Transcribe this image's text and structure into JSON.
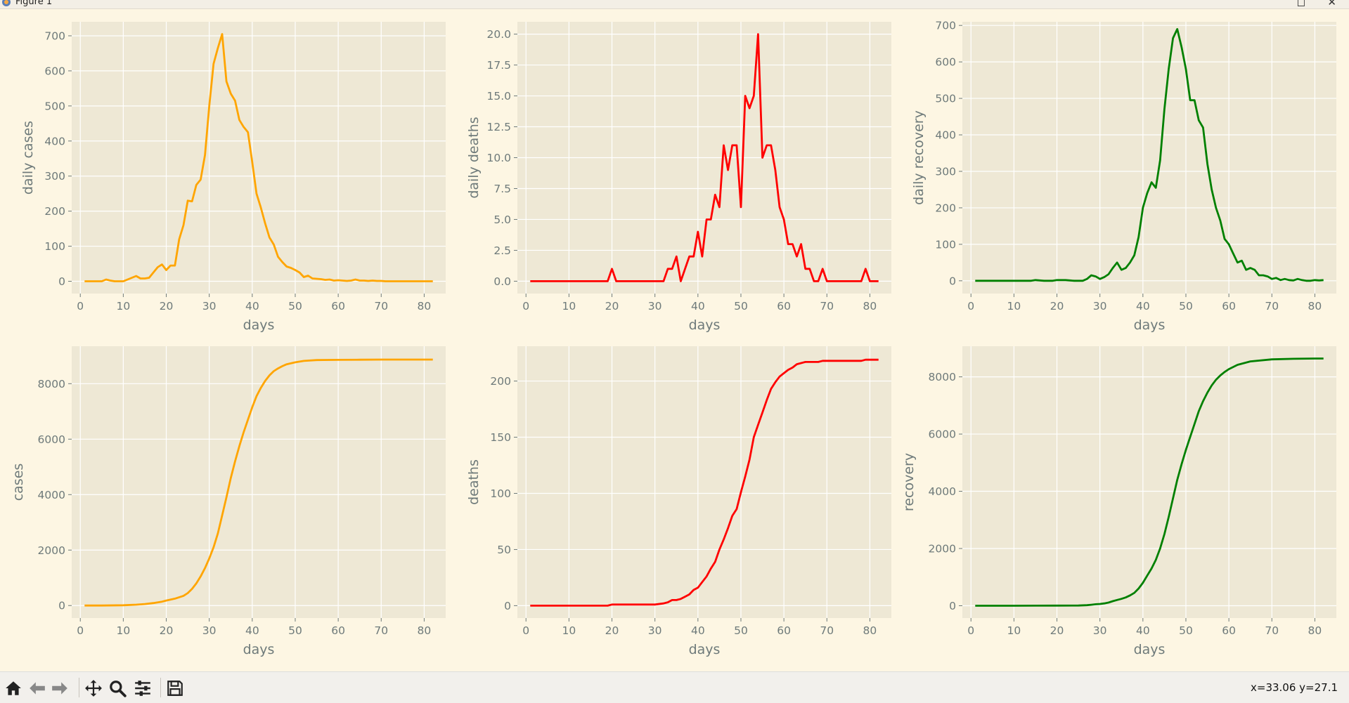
{
  "window": {
    "title": "Figure 1"
  },
  "toolbar": {
    "buttons": [
      {
        "name": "home",
        "icon": "home-icon"
      },
      {
        "name": "back",
        "icon": "arrow-left-icon"
      },
      {
        "name": "forward",
        "icon": "arrow-right-icon"
      },
      {
        "name": "pan",
        "icon": "move-icon"
      },
      {
        "name": "zoom",
        "icon": "magnifier-icon"
      },
      {
        "name": "configure",
        "icon": "sliders-icon"
      },
      {
        "name": "save",
        "icon": "floppy-disk-icon"
      }
    ],
    "coordinates": "x=33.06 y=27.1"
  },
  "colors": {
    "orange": "#ffa500",
    "red": "#ff0000",
    "green": "#008000",
    "axes_bg": "#eee8d5",
    "grid": "#ffffff"
  },
  "chart_data": [
    {
      "type": "line",
      "ylabel": "daily cases",
      "xlabel": "days",
      "color": "#ffa500",
      "xlim": [
        -2,
        85
      ],
      "ylim": [
        -35,
        740
      ],
      "xticks": [
        0,
        10,
        20,
        30,
        40,
        50,
        60,
        70,
        80
      ],
      "yticks": [
        0,
        100,
        200,
        300,
        400,
        500,
        600,
        700
      ],
      "x": [
        1,
        2,
        3,
        4,
        5,
        6,
        7,
        8,
        9,
        10,
        11,
        12,
        13,
        14,
        15,
        16,
        17,
        18,
        19,
        20,
        21,
        22,
        23,
        24,
        25,
        26,
        27,
        28,
        29,
        30,
        31,
        32,
        33,
        34,
        35,
        36,
        37,
        38,
        39,
        40,
        41,
        42,
        43,
        44,
        45,
        46,
        47,
        48,
        49,
        50,
        51,
        52,
        53,
        54,
        55,
        56,
        57,
        58,
        59,
        60,
        61,
        62,
        63,
        64,
        65,
        66,
        67,
        68,
        69,
        70,
        71,
        72,
        73,
        74,
        75,
        76,
        77,
        78,
        79,
        80,
        81,
        82
      ],
      "y": [
        0,
        0,
        0,
        0,
        0,
        5,
        2,
        0,
        0,
        0,
        5,
        10,
        15,
        8,
        8,
        10,
        25,
        40,
        48,
        32,
        45,
        45,
        120,
        160,
        230,
        228,
        275,
        290,
        360,
        500,
        620,
        665,
        705,
        570,
        535,
        515,
        460,
        440,
        425,
        340,
        250,
        210,
        165,
        125,
        105,
        70,
        55,
        42,
        38,
        32,
        25,
        12,
        16,
        8,
        7,
        6,
        4,
        5,
        2,
        3,
        2,
        1,
        2,
        5,
        2,
        2,
        1,
        2,
        1,
        1,
        0,
        0,
        0,
        0,
        0,
        0,
        0,
        0,
        0,
        0,
        0,
        0
      ]
    },
    {
      "type": "line",
      "ylabel": "daily deaths",
      "xlabel": "days",
      "color": "#ff0000",
      "xlim": [
        -2,
        85
      ],
      "ylim": [
        -1,
        21
      ],
      "xticks": [
        0,
        10,
        20,
        30,
        40,
        50,
        60,
        70,
        80
      ],
      "yticks": [
        0.0,
        2.5,
        5.0,
        7.5,
        10.0,
        12.5,
        15.0,
        17.5,
        20.0
      ],
      "ytick_labels": [
        "0.0",
        "2.5",
        "5.0",
        "7.5",
        "10.0",
        "12.5",
        "15.0",
        "17.5",
        "20.0"
      ],
      "x": [
        1,
        2,
        3,
        4,
        5,
        6,
        7,
        8,
        9,
        10,
        11,
        12,
        13,
        14,
        15,
        16,
        17,
        18,
        19,
        20,
        21,
        22,
        23,
        24,
        25,
        26,
        27,
        28,
        29,
        30,
        31,
        32,
        33,
        34,
        35,
        36,
        37,
        38,
        39,
        40,
        41,
        42,
        43,
        44,
        45,
        46,
        47,
        48,
        49,
        50,
        51,
        52,
        53,
        54,
        55,
        56,
        57,
        58,
        59,
        60,
        61,
        62,
        63,
        64,
        65,
        66,
        67,
        68,
        69,
        70,
        71,
        72,
        73,
        74,
        75,
        76,
        77,
        78,
        79,
        80,
        81,
        82
      ],
      "y": [
        0,
        0,
        0,
        0,
        0,
        0,
        0,
        0,
        0,
        0,
        0,
        0,
        0,
        0,
        0,
        0,
        0,
        0,
        0,
        1,
        0,
        0,
        0,
        0,
        0,
        0,
        0,
        0,
        0,
        0,
        0,
        0,
        1,
        1,
        2,
        0,
        1,
        2,
        2,
        4,
        2,
        5,
        5,
        7,
        6,
        11,
        9,
        11,
        11,
        6,
        15,
        14,
        15,
        20,
        10,
        11,
        11,
        9,
        6,
        5,
        3,
        3,
        2,
        3,
        1,
        1,
        0,
        0,
        1,
        0,
        0,
        0,
        0,
        0,
        0,
        0,
        0,
        0,
        1,
        0,
        0,
        0
      ]
    },
    {
      "type": "line",
      "ylabel": "daily recovery",
      "xlabel": "days",
      "color": "#008000",
      "xlim": [
        -2,
        85
      ],
      "ylim": [
        -35,
        710
      ],
      "xticks": [
        0,
        10,
        20,
        30,
        40,
        50,
        60,
        70,
        80
      ],
      "yticks": [
        0,
        100,
        200,
        300,
        400,
        500,
        600,
        700
      ],
      "x": [
        1,
        2,
        3,
        4,
        5,
        6,
        7,
        8,
        9,
        10,
        11,
        12,
        13,
        14,
        15,
        16,
        17,
        18,
        19,
        20,
        21,
        22,
        23,
        24,
        25,
        26,
        27,
        28,
        29,
        30,
        31,
        32,
        33,
        34,
        35,
        36,
        37,
        38,
        39,
        40,
        41,
        42,
        43,
        44,
        45,
        46,
        47,
        48,
        49,
        50,
        51,
        52,
        53,
        54,
        55,
        56,
        57,
        58,
        59,
        60,
        61,
        62,
        63,
        64,
        65,
        66,
        67,
        68,
        69,
        70,
        71,
        72,
        73,
        74,
        75,
        76,
        77,
        78,
        79,
        80,
        81,
        82
      ],
      "y": [
        0,
        0,
        0,
        0,
        0,
        0,
        0,
        0,
        0,
        0,
        0,
        0,
        0,
        0,
        2,
        1,
        0,
        0,
        0,
        2,
        2,
        2,
        1,
        0,
        0,
        0,
        5,
        15,
        12,
        5,
        10,
        18,
        35,
        50,
        30,
        35,
        50,
        70,
        120,
        200,
        240,
        270,
        255,
        330,
        470,
        580,
        665,
        690,
        640,
        580,
        495,
        495,
        440,
        420,
        320,
        250,
        200,
        165,
        115,
        100,
        75,
        50,
        55,
        30,
        35,
        30,
        15,
        15,
        12,
        5,
        8,
        2,
        5,
        2,
        1,
        5,
        2,
        0,
        0,
        2,
        1,
        2
      ]
    },
    {
      "type": "line",
      "ylabel": "cases",
      "xlabel": "days",
      "color": "#ffa500",
      "xlim": [
        -2,
        85
      ],
      "ylim": [
        -450,
        9350
      ],
      "xticks": [
        0,
        10,
        20,
        30,
        40,
        50,
        60,
        70,
        80
      ],
      "yticks": [
        0,
        2000,
        4000,
        6000,
        8000
      ],
      "x": [
        1,
        5,
        10,
        13,
        15,
        17,
        19,
        20,
        22,
        23,
        24,
        25,
        26,
        27,
        28,
        29,
        30,
        31,
        32,
        33,
        34,
        35,
        36,
        37,
        38,
        39,
        40,
        41,
        42,
        43,
        44,
        45,
        46,
        47,
        48,
        50,
        52,
        55,
        60,
        65,
        70,
        75,
        82
      ],
      "y": [
        0,
        0,
        10,
        30,
        55,
        90,
        140,
        180,
        250,
        300,
        350,
        450,
        600,
        800,
        1050,
        1350,
        1700,
        2100,
        2600,
        3250,
        3900,
        4600,
        5200,
        5750,
        6250,
        6700,
        7150,
        7550,
        7850,
        8100,
        8300,
        8450,
        8550,
        8630,
        8700,
        8770,
        8820,
        8850,
        8860,
        8865,
        8868,
        8870,
        8870
      ]
    },
    {
      "type": "line",
      "ylabel": "deaths",
      "xlabel": "days",
      "color": "#ff0000",
      "xlim": [
        -2,
        85
      ],
      "ylim": [
        -11,
        231
      ],
      "xticks": [
        0,
        10,
        20,
        30,
        40,
        50,
        60,
        70,
        80
      ],
      "yticks": [
        0,
        50,
        100,
        150,
        200
      ],
      "x": [
        1,
        5,
        10,
        15,
        19,
        20,
        25,
        30,
        32,
        33,
        34,
        35,
        36,
        37,
        38,
        39,
        40,
        41,
        42,
        43,
        44,
        45,
        46,
        47,
        48,
        49,
        50,
        51,
        52,
        53,
        54,
        55,
        56,
        57,
        58,
        59,
        60,
        61,
        62,
        63,
        64,
        65,
        66,
        67,
        68,
        69,
        70,
        72,
        75,
        78,
        79,
        80,
        82
      ],
      "y": [
        0,
        0,
        0,
        0,
        0,
        1,
        1,
        1,
        2,
        3,
        5,
        5,
        6,
        8,
        10,
        14,
        16,
        21,
        26,
        33,
        39,
        50,
        59,
        69,
        80,
        86,
        101,
        115,
        130,
        150,
        161,
        172,
        183,
        193,
        199,
        204,
        207,
        210,
        212,
        215,
        216,
        217,
        217,
        217,
        217,
        218,
        218,
        218,
        218,
        218,
        219,
        219,
        219
      ]
    },
    {
      "type": "line",
      "ylabel": "recovery",
      "xlabel": "days",
      "color": "#008000",
      "xlim": [
        -2,
        85
      ],
      "ylim": [
        -430,
        9070
      ],
      "xticks": [
        0,
        10,
        20,
        30,
        40,
        50,
        60,
        70,
        80
      ],
      "yticks": [
        0,
        2000,
        4000,
        6000,
        8000
      ],
      "x": [
        1,
        5,
        10,
        15,
        20,
        25,
        27,
        28,
        29,
        30,
        31,
        32,
        33,
        34,
        35,
        36,
        37,
        38,
        39,
        40,
        41,
        42,
        43,
        44,
        45,
        46,
        47,
        48,
        49,
        50,
        51,
        52,
        53,
        54,
        55,
        56,
        57,
        58,
        59,
        60,
        62,
        65,
        70,
        75,
        80,
        82
      ],
      "y": [
        0,
        0,
        0,
        2,
        5,
        8,
        20,
        35,
        50,
        60,
        80,
        110,
        160,
        200,
        240,
        290,
        360,
        450,
        600,
        800,
        1050,
        1300,
        1600,
        2000,
        2500,
        3100,
        3750,
        4400,
        4950,
        5450,
        5900,
        6350,
        6800,
        7150,
        7450,
        7700,
        7900,
        8050,
        8170,
        8270,
        8420,
        8540,
        8610,
        8630,
        8640,
        8640
      ]
    }
  ]
}
